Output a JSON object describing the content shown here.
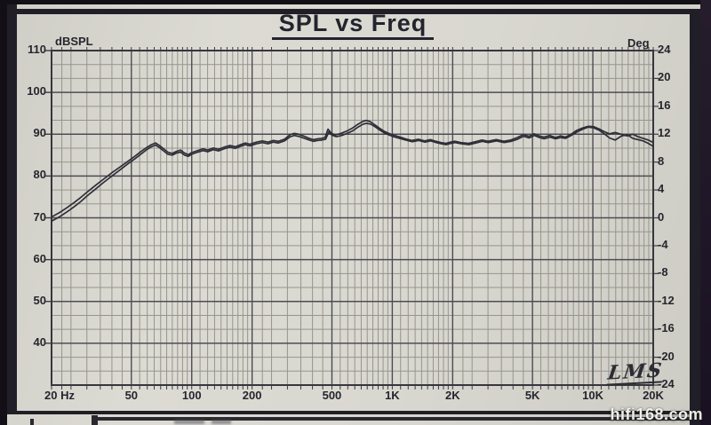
{
  "title": "SPL vs Freq",
  "branding": {
    "lms_logo": "LMS",
    "watermark": "hifi168.com"
  },
  "colors": {
    "paper": "#d9d8d0",
    "grid_minor": "#96958d",
    "grid_major": "#4c4c54",
    "plot_frame": "#36363e",
    "trace": "#2e2e37",
    "tick": "#3c3c44",
    "text": "#26262e",
    "border_frame": "#201f27",
    "watermark_text": "#fafaf6"
  },
  "chart_data": {
    "type": "line",
    "title": "SPL vs Freq",
    "grid": true,
    "legend": "none",
    "x_axis": {
      "unit_label": "Hz",
      "scale": "log",
      "min": 20,
      "max": 20000,
      "ticks": [
        {
          "label": "20 Hz",
          "value": 20
        },
        {
          "label": "50",
          "value": 50
        },
        {
          "label": "100",
          "value": 100
        },
        {
          "label": "200",
          "value": 200
        },
        {
          "label": "500",
          "value": 500
        },
        {
          "label": "1K",
          "value": 1000
        },
        {
          "label": "2K",
          "value": 2000
        },
        {
          "label": "5K",
          "value": 5000
        },
        {
          "label": "10K",
          "value": 10000
        },
        {
          "label": "20K",
          "value": 20000
        }
      ]
    },
    "y_axis_left": {
      "label": "dBSPL",
      "min": 30,
      "max": 110,
      "ticks": [
        110,
        100,
        90,
        80,
        70,
        60,
        50,
        40
      ]
    },
    "y_axis_right": {
      "label": "Deg",
      "min": -24,
      "max": 24,
      "ticks": [
        24,
        20,
        16,
        12,
        8,
        4,
        0,
        -4,
        -8,
        -12,
        -16,
        -20,
        -24
      ]
    },
    "series": [
      {
        "name": "spl-trace-1",
        "points": [
          [
            20,
            70.2
          ],
          [
            22,
            71.3
          ],
          [
            24,
            72.5
          ],
          [
            26,
            73.7
          ],
          [
            28,
            74.9
          ],
          [
            30,
            76.1
          ],
          [
            33,
            77.7
          ],
          [
            36,
            79.1
          ],
          [
            40,
            80.8
          ],
          [
            44,
            82.2
          ],
          [
            48,
            83.5
          ],
          [
            52,
            84.7
          ],
          [
            56,
            85.9
          ],
          [
            60,
            86.9
          ],
          [
            63,
            87.5
          ],
          [
            66,
            87.9
          ],
          [
            69,
            87.3
          ],
          [
            72,
            86.6
          ],
          [
            76,
            85.7
          ],
          [
            80,
            85.4
          ],
          [
            84,
            85.9
          ],
          [
            88,
            86.2
          ],
          [
            92,
            85.5
          ],
          [
            96,
            85.1
          ],
          [
            100,
            85.6
          ],
          [
            107,
            86.1
          ],
          [
            114,
            86.5
          ],
          [
            120,
            86.2
          ],
          [
            128,
            86.7
          ],
          [
            136,
            86.4
          ],
          [
            145,
            86.9
          ],
          [
            155,
            87.3
          ],
          [
            165,
            87.0
          ],
          [
            175,
            87.5
          ],
          [
            185,
            87.9
          ],
          [
            195,
            87.6
          ],
          [
            210,
            88.1
          ],
          [
            225,
            88.4
          ],
          [
            240,
            88.1
          ],
          [
            255,
            88.5
          ],
          [
            270,
            88.3
          ],
          [
            290,
            88.8
          ],
          [
            310,
            89.9
          ],
          [
            325,
            90.2
          ],
          [
            340,
            90.0
          ],
          [
            360,
            89.6
          ],
          [
            385,
            89.0
          ],
          [
            405,
            88.7
          ],
          [
            425,
            88.9
          ],
          [
            445,
            89.0
          ],
          [
            462,
            89.2
          ],
          [
            478,
            91.2
          ],
          [
            495,
            90.3
          ],
          [
            520,
            89.8
          ],
          [
            555,
            90.2
          ],
          [
            590,
            90.7
          ],
          [
            630,
            91.4
          ],
          [
            670,
            92.3
          ],
          [
            710,
            93.0
          ],
          [
            740,
            93.3
          ],
          [
            775,
            93.0
          ],
          [
            815,
            92.3
          ],
          [
            860,
            91.5
          ],
          [
            910,
            90.7
          ],
          [
            960,
            90.2
          ],
          [
            1010,
            89.8
          ],
          [
            1080,
            89.4
          ],
          [
            1160,
            88.9
          ],
          [
            1250,
            88.5
          ],
          [
            1350,
            88.8
          ],
          [
            1450,
            88.4
          ],
          [
            1550,
            88.7
          ],
          [
            1650,
            88.3
          ],
          [
            1750,
            88.0
          ],
          [
            1850,
            87.8
          ],
          [
            1950,
            88.1
          ],
          [
            2050,
            88.3
          ],
          [
            2200,
            88.0
          ],
          [
            2400,
            87.8
          ],
          [
            2600,
            88.2
          ],
          [
            2800,
            88.6
          ],
          [
            3000,
            88.3
          ],
          [
            3300,
            88.7
          ],
          [
            3600,
            88.3
          ],
          [
            3900,
            88.6
          ],
          [
            4200,
            89.2
          ],
          [
            4500,
            89.9
          ],
          [
            4800,
            89.5
          ],
          [
            5100,
            90.1
          ],
          [
            5400,
            89.6
          ],
          [
            5700,
            89.3
          ],
          [
            6100,
            89.7
          ],
          [
            6500,
            89.2
          ],
          [
            6900,
            89.6
          ],
          [
            7300,
            89.3
          ],
          [
            7800,
            90.0
          ],
          [
            8300,
            90.9
          ],
          [
            8900,
            91.5
          ],
          [
            9500,
            91.9
          ],
          [
            10100,
            91.8
          ],
          [
            10700,
            91.3
          ],
          [
            11400,
            90.6
          ],
          [
            12100,
            90.1
          ],
          [
            12900,
            90.4
          ],
          [
            13800,
            90.0
          ],
          [
            14800,
            89.6
          ],
          [
            15800,
            90.0
          ],
          [
            16800,
            89.4
          ],
          [
            17800,
            89.0
          ],
          [
            18900,
            88.6
          ],
          [
            20000,
            88.0
          ]
        ]
      },
      {
        "name": "spl-trace-2",
        "points": [
          [
            20,
            69.2
          ],
          [
            22,
            70.3
          ],
          [
            24,
            71.5
          ],
          [
            26,
            72.7
          ],
          [
            28,
            73.9
          ],
          [
            30,
            75.2
          ],
          [
            33,
            76.8
          ],
          [
            36,
            78.3
          ],
          [
            40,
            80.0
          ],
          [
            44,
            81.5
          ],
          [
            48,
            82.9
          ],
          [
            52,
            84.1
          ],
          [
            56,
            85.3
          ],
          [
            60,
            86.4
          ],
          [
            63,
            87.0
          ],
          [
            66,
            87.4
          ],
          [
            69,
            86.8
          ],
          [
            72,
            86.1
          ],
          [
            76,
            85.2
          ],
          [
            80,
            85.0
          ],
          [
            84,
            85.5
          ],
          [
            88,
            85.7
          ],
          [
            92,
            85.0
          ],
          [
            96,
            84.7
          ],
          [
            100,
            85.2
          ],
          [
            107,
            85.7
          ],
          [
            114,
            86.1
          ],
          [
            120,
            85.8
          ],
          [
            128,
            86.3
          ],
          [
            136,
            86.0
          ],
          [
            145,
            86.5
          ],
          [
            155,
            86.9
          ],
          [
            165,
            86.6
          ],
          [
            175,
            87.1
          ],
          [
            185,
            87.5
          ],
          [
            195,
            87.2
          ],
          [
            210,
            87.7
          ],
          [
            225,
            88.0
          ],
          [
            240,
            87.7
          ],
          [
            255,
            88.1
          ],
          [
            270,
            87.9
          ],
          [
            290,
            88.4
          ],
          [
            310,
            89.4
          ],
          [
            325,
            89.7
          ],
          [
            340,
            89.5
          ],
          [
            360,
            89.1
          ],
          [
            385,
            88.6
          ],
          [
            405,
            88.3
          ],
          [
            425,
            88.5
          ],
          [
            445,
            88.6
          ],
          [
            465,
            88.8
          ],
          [
            482,
            90.5
          ],
          [
            500,
            89.8
          ],
          [
            525,
            89.4
          ],
          [
            560,
            89.7
          ],
          [
            595,
            90.2
          ],
          [
            635,
            90.8
          ],
          [
            675,
            91.7
          ],
          [
            715,
            92.4
          ],
          [
            745,
            92.6
          ],
          [
            780,
            92.4
          ],
          [
            820,
            91.8
          ],
          [
            865,
            91.0
          ],
          [
            915,
            90.3
          ],
          [
            965,
            89.8
          ],
          [
            1015,
            89.4
          ],
          [
            1085,
            89.0
          ],
          [
            1165,
            88.6
          ],
          [
            1255,
            88.2
          ],
          [
            1355,
            88.5
          ],
          [
            1455,
            88.1
          ],
          [
            1555,
            88.4
          ],
          [
            1655,
            88.0
          ],
          [
            1755,
            87.7
          ],
          [
            1855,
            87.5
          ],
          [
            1955,
            87.8
          ],
          [
            2055,
            88.0
          ],
          [
            2210,
            87.7
          ],
          [
            2410,
            87.5
          ],
          [
            2610,
            87.9
          ],
          [
            2810,
            88.3
          ],
          [
            3010,
            88.0
          ],
          [
            3310,
            88.4
          ],
          [
            3610,
            88.0
          ],
          [
            3910,
            88.3
          ],
          [
            4210,
            88.8
          ],
          [
            4510,
            89.5
          ],
          [
            4810,
            89.1
          ],
          [
            5110,
            89.7
          ],
          [
            5410,
            89.2
          ],
          [
            5710,
            88.9
          ],
          [
            6110,
            89.3
          ],
          [
            6510,
            88.9
          ],
          [
            6910,
            89.2
          ],
          [
            7310,
            89.0
          ],
          [
            7810,
            89.7
          ],
          [
            8310,
            90.5
          ],
          [
            8910,
            91.2
          ],
          [
            9510,
            91.7
          ],
          [
            10110,
            91.5
          ],
          [
            10710,
            91.0
          ],
          [
            11410,
            90.1
          ],
          [
            12110,
            89.1
          ],
          [
            12910,
            88.6
          ],
          [
            13810,
            89.5
          ],
          [
            14810,
            89.9
          ],
          [
            15810,
            89.0
          ],
          [
            16810,
            88.7
          ],
          [
            17810,
            88.4
          ],
          [
            18910,
            87.8
          ],
          [
            20000,
            87.1
          ]
        ]
      }
    ]
  }
}
